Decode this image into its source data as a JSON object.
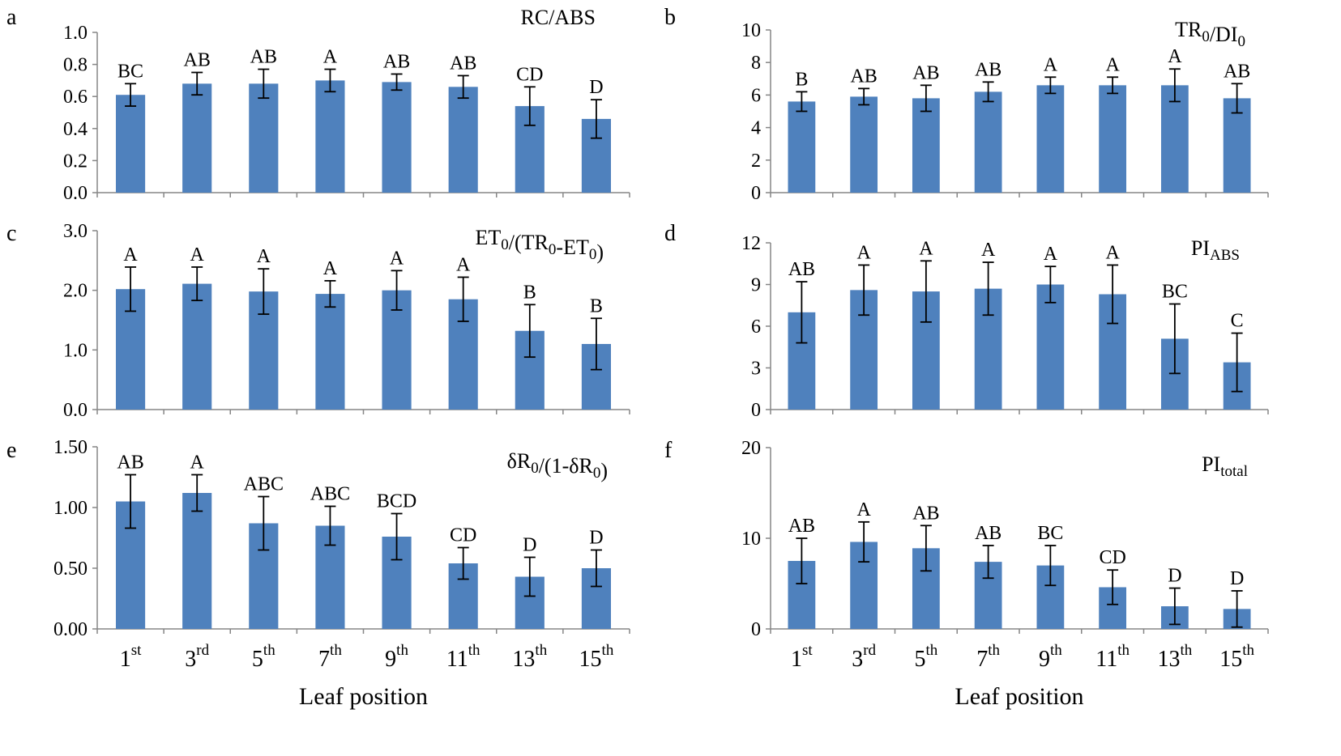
{
  "accent_color": "#4f81bd",
  "x_axis_label": "Leaf position",
  "x_categories": [
    {
      "base": "1",
      "suffix": "st"
    },
    {
      "base": "3",
      "suffix": "rd"
    },
    {
      "base": "5",
      "suffix": "th"
    },
    {
      "base": "7",
      "suffix": "th"
    },
    {
      "base": "9",
      "suffix": "th"
    },
    {
      "base": "11",
      "suffix": "th"
    },
    {
      "base": "13",
      "suffix": "th"
    },
    {
      "base": "15",
      "suffix": "th"
    }
  ],
  "chart_data": [
    {
      "panel": "a",
      "type": "bar",
      "title": [
        {
          "t": "RC/ABS"
        }
      ],
      "yticks": [
        "0.0",
        "0.2",
        "0.4",
        "0.6",
        "0.8",
        "1.0"
      ],
      "ylim": [
        0,
        1.0
      ],
      "values": [
        0.61,
        0.68,
        0.68,
        0.7,
        0.69,
        0.66,
        0.54,
        0.46
      ],
      "errors": [
        0.07,
        0.07,
        0.09,
        0.07,
        0.05,
        0.07,
        0.12,
        0.12
      ],
      "letters": [
        "BC",
        "AB",
        "AB",
        "A",
        "AB",
        "AB",
        "CD",
        "D"
      ]
    },
    {
      "panel": "b",
      "type": "bar",
      "title": [
        {
          "t": "TR"
        },
        {
          "t": "0",
          "sub": true
        },
        {
          "t": "/DI"
        },
        {
          "t": "0",
          "sub": true
        }
      ],
      "yticks": [
        "0",
        "2",
        "4",
        "6",
        "8",
        "10"
      ],
      "ylim": [
        0,
        10
      ],
      "values": [
        5.6,
        5.9,
        5.8,
        6.2,
        6.6,
        6.6,
        6.6,
        5.8
      ],
      "errors": [
        0.6,
        0.5,
        0.8,
        0.6,
        0.5,
        0.5,
        1.0,
        0.9
      ],
      "letters": [
        "B",
        "AB",
        "AB",
        "AB",
        "A",
        "A",
        "A",
        "AB"
      ]
    },
    {
      "panel": "c",
      "type": "bar",
      "title": [
        {
          "t": "ET"
        },
        {
          "t": "0",
          "sub": true
        },
        {
          "t": "/(TR"
        },
        {
          "t": "0",
          "sub": true
        },
        {
          "t": "-ET"
        },
        {
          "t": "0",
          "sub": true
        },
        {
          "t": ")"
        }
      ],
      "yticks": [
        "0.0",
        "1.0",
        "2.0",
        "3.0"
      ],
      "ylim": [
        0,
        3.0
      ],
      "values": [
        2.02,
        2.11,
        1.98,
        1.94,
        2.0,
        1.85,
        1.32,
        1.1
      ],
      "errors": [
        0.37,
        0.28,
        0.38,
        0.22,
        0.33,
        0.37,
        0.44,
        0.43
      ],
      "letters": [
        "A",
        "A",
        "A",
        "A",
        "A",
        "A",
        "B",
        "B"
      ]
    },
    {
      "panel": "d",
      "type": "bar",
      "title": [
        {
          "t": "PI"
        },
        {
          "t": "ABS",
          "sub": true
        }
      ],
      "yticks": [
        "0",
        "3",
        "6",
        "9",
        "12"
      ],
      "ylim": [
        0,
        12
      ],
      "values": [
        7.0,
        8.6,
        8.5,
        8.7,
        9.0,
        8.3,
        5.1,
        3.4
      ],
      "errors": [
        2.2,
        1.8,
        2.2,
        1.9,
        1.3,
        2.1,
        2.5,
        2.1
      ],
      "letters": [
        "AB",
        "A",
        "A",
        "A",
        "A",
        "A",
        "BC",
        "C"
      ]
    },
    {
      "panel": "e",
      "type": "bar",
      "title": [
        {
          "t": "δR"
        },
        {
          "t": "0",
          "sub": true
        },
        {
          "t": "/(1-δR"
        },
        {
          "t": "0",
          "sub": true
        },
        {
          "t": ")"
        }
      ],
      "yticks": [
        "0.00",
        "0.50",
        "1.00",
        "1.50"
      ],
      "ylim": [
        0,
        1.5
      ],
      "values": [
        1.05,
        1.12,
        0.87,
        0.85,
        0.76,
        0.54,
        0.43,
        0.5
      ],
      "errors": [
        0.22,
        0.15,
        0.22,
        0.16,
        0.19,
        0.13,
        0.16,
        0.15
      ],
      "letters": [
        "AB",
        "A",
        "ABC",
        "ABC",
        "BCD",
        "CD",
        "D",
        "D"
      ]
    },
    {
      "panel": "f",
      "type": "bar",
      "title": [
        {
          "t": "PI"
        },
        {
          "t": "total",
          "sub": true
        }
      ],
      "yticks": [
        "0",
        "10",
        "20"
      ],
      "ylim": [
        0,
        20
      ],
      "values": [
        7.5,
        9.6,
        8.9,
        7.4,
        7.0,
        4.6,
        2.5,
        2.2
      ],
      "errors": [
        2.5,
        2.2,
        2.5,
        1.8,
        2.2,
        1.9,
        2.0,
        2.0
      ],
      "letters": [
        "AB",
        "A",
        "AB",
        "AB",
        "BC",
        "CD",
        "D",
        "D"
      ]
    }
  ]
}
